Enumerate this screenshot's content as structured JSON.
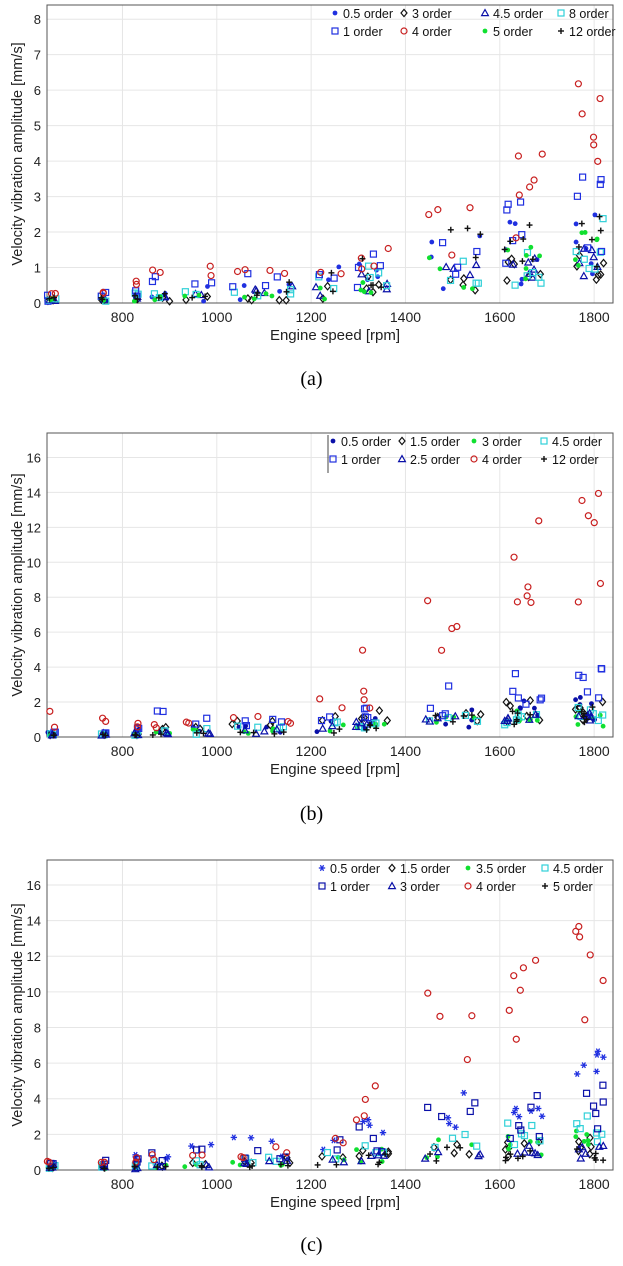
{
  "colors": {
    "navy": "#0a10a8",
    "blue": "#2030e0",
    "black": "#111111",
    "green": "#10e030",
    "cyan": "#30d0d8",
    "red": "#c82020"
  },
  "chart_data": [
    {
      "type": "scatter",
      "caption": "(a)",
      "xlabel": "Engine speed [rpm]",
      "ylabel": "Velocity vibration amplitude [mm/s]",
      "xlim": [
        640,
        1840
      ],
      "ylim": [
        0,
        8.4
      ],
      "xticks": [
        800,
        1000,
        1200,
        1400,
        1600,
        1800
      ],
      "yticks": [
        0,
        1,
        2,
        3,
        4,
        5,
        6,
        7,
        8
      ],
      "grid": true,
      "legend_position": "top-right",
      "legend_columns": 4,
      "series": [
        {
          "name": "0.5 order",
          "marker": "dot",
          "color": "blue",
          "level": [
            0.12,
            0.1,
            0.14,
            0.2,
            0.25,
            0.35,
            0.55,
            0.7,
            0.9,
            1.1,
            1.3,
            1.6
          ],
          "spread": [
            0.1,
            0.1,
            0.15,
            0.2,
            0.25,
            0.3,
            0.35,
            0.4,
            0.6,
            0.8,
            1.0,
            1.1
          ]
        },
        {
          "name": "3 order",
          "marker": "diamond",
          "color": "black",
          "level": [
            0.08,
            0.08,
            0.1,
            0.12,
            0.14,
            0.18,
            0.22,
            0.3,
            0.45,
            0.6,
            0.8,
            0.9
          ],
          "spread": [
            0.05,
            0.05,
            0.1,
            0.1,
            0.1,
            0.1,
            0.15,
            0.2,
            0.3,
            0.4,
            0.5,
            0.5
          ]
        },
        {
          "name": "4.5 order",
          "marker": "triangle",
          "color": "navy",
          "level": [
            0.1,
            0.12,
            0.15,
            0.18,
            0.2,
            0.25,
            0.3,
            0.4,
            0.6,
            0.8,
            1.0,
            1.2
          ],
          "spread": [
            0.05,
            0.05,
            0.1,
            0.1,
            0.1,
            0.15,
            0.2,
            0.25,
            0.3,
            0.4,
            0.5,
            0.5
          ]
        },
        {
          "name": "8 order",
          "marker": "square",
          "color": "cyan",
          "level": [
            0.1,
            0.12,
            0.2,
            0.3,
            0.35,
            0.4,
            0.45,
            0.5,
            0.7,
            0.9,
            1.2,
            1.6
          ],
          "spread": [
            0.05,
            0.1,
            0.1,
            0.15,
            0.2,
            0.2,
            0.25,
            0.3,
            0.4,
            0.6,
            0.7,
            0.8
          ]
        },
        {
          "name": "1 order",
          "marker": "square",
          "color": "blue",
          "level": [
            0.15,
            0.2,
            0.3,
            0.45,
            0.5,
            0.55,
            0.6,
            0.8,
            1.2,
            1.8,
            2.2,
            2.4
          ],
          "spread": [
            0.1,
            0.1,
            0.2,
            0.3,
            0.3,
            0.3,
            0.3,
            0.4,
            0.8,
            1.1,
            1.1,
            1.2
          ]
        },
        {
          "name": "4 order",
          "marker": "circle",
          "color": "red",
          "level": [
            0.35,
            0.3,
            0.55,
            0.75,
            0.85,
            0.85,
            0.75,
            0.9,
            1.3,
            1.9,
            2.8,
            5.0
          ],
          "spread": [
            0.1,
            0.1,
            0.2,
            0.2,
            0.2,
            0.2,
            0.2,
            0.2,
            0.6,
            1.0,
            1.4,
            1.8
          ]
        },
        {
          "name": "5 order",
          "marker": "dot",
          "color": "green",
          "level": [
            0.08,
            0.08,
            0.1,
            0.12,
            0.14,
            0.16,
            0.2,
            0.25,
            0.5,
            0.8,
            1.1,
            1.3
          ],
          "spread": [
            0.05,
            0.05,
            0.08,
            0.1,
            0.1,
            0.1,
            0.15,
            0.2,
            0.3,
            0.5,
            0.6,
            0.7
          ]
        },
        {
          "name": "12 order",
          "marker": "plus",
          "color": "black",
          "level": [
            0.1,
            0.12,
            0.15,
            0.2,
            0.25,
            0.3,
            0.4,
            0.6,
            0.9,
            1.4,
            1.8,
            1.9
          ],
          "spread": [
            0.05,
            0.08,
            0.1,
            0.1,
            0.15,
            0.2,
            0.25,
            0.3,
            0.5,
            0.9,
            1.0,
            1.0
          ]
        }
      ]
    },
    {
      "type": "scatter",
      "caption": "(b)",
      "xlabel": "Engine speed [rpm]",
      "ylabel": "Velocity vibration amplitude [mm/s]",
      "xlim": [
        640,
        1840
      ],
      "ylim": [
        0,
        17.4
      ],
      "xticks": [
        800,
        1000,
        1200,
        1400,
        1600,
        1800
      ],
      "yticks": [
        0,
        2,
        4,
        6,
        8,
        10,
        12,
        14,
        16
      ],
      "grid": true,
      "legend_position": "top-right",
      "legend_columns": 4,
      "series": [
        {
          "name": "0.5 order",
          "marker": "dot",
          "color": "navy",
          "level": [
            0.2,
            0.2,
            0.3,
            0.35,
            0.4,
            0.45,
            0.5,
            0.6,
            0.8,
            1.1,
            1.4,
            1.6
          ],
          "spread": [
            0.1,
            0.1,
            0.2,
            0.2,
            0.2,
            0.2,
            0.3,
            0.3,
            0.4,
            0.6,
            0.8,
            0.8
          ]
        },
        {
          "name": "1.5 order",
          "marker": "diamond",
          "color": "black",
          "level": [
            0.15,
            0.2,
            0.3,
            0.5,
            0.7,
            0.8,
            0.9,
            1.0,
            1.2,
            1.4,
            1.5,
            1.6
          ],
          "spread": [
            0.1,
            0.1,
            0.2,
            0.2,
            0.3,
            0.3,
            0.3,
            0.3,
            0.4,
            0.6,
            0.7,
            0.7
          ]
        },
        {
          "name": "3 order",
          "marker": "dot",
          "color": "green",
          "level": [
            0.1,
            0.1,
            0.2,
            0.25,
            0.3,
            0.35,
            0.4,
            0.5,
            0.7,
            0.9,
            1.0,
            1.1
          ],
          "spread": [
            0.05,
            0.05,
            0.1,
            0.1,
            0.15,
            0.2,
            0.2,
            0.2,
            0.3,
            0.4,
            0.5,
            0.5
          ]
        },
        {
          "name": "4.5 order",
          "marker": "square",
          "color": "cyan",
          "level": [
            0.15,
            0.15,
            0.2,
            0.3,
            0.35,
            0.45,
            0.5,
            0.6,
            0.8,
            0.9,
            1.0,
            1.2
          ],
          "spread": [
            0.05,
            0.05,
            0.1,
            0.15,
            0.2,
            0.2,
            0.2,
            0.3,
            0.3,
            0.4,
            0.5,
            0.5
          ]
        },
        {
          "name": "1 order",
          "marker": "square",
          "color": "blue",
          "level": [
            0.3,
            0.3,
            0.5,
            1.0,
            0.9,
            0.9,
            0.9,
            1.0,
            1.4,
            2.2,
            2.6,
            2.8
          ],
          "spread": [
            0.1,
            0.1,
            0.3,
            0.5,
            0.3,
            0.3,
            0.3,
            0.3,
            0.5,
            1.0,
            1.2,
            1.2
          ]
        },
        {
          "name": "2.5 order",
          "marker": "triangle",
          "color": "navy",
          "level": [
            0.1,
            0.12,
            0.15,
            0.2,
            0.25,
            0.3,
            0.35,
            0.45,
            0.6,
            0.8,
            0.9,
            1.0
          ],
          "spread": [
            0.05,
            0.05,
            0.1,
            0.1,
            0.1,
            0.15,
            0.15,
            0.2,
            0.3,
            0.4,
            0.4,
            0.5
          ]
        },
        {
          "name": "4 order",
          "marker": "circle",
          "color": "red",
          "level": [
            1.0,
            0.9,
            0.8,
            0.6,
            0.7,
            0.9,
            1.2,
            1.8,
            3.5,
            7.0,
            9.5,
            10.0
          ],
          "spread": [
            0.6,
            0.3,
            0.3,
            0.2,
            0.3,
            0.4,
            0.5,
            0.5,
            2.0,
            3.0,
            3.0,
            4.0
          ]
        },
        {
          "name": "12 order",
          "marker": "plus",
          "color": "black",
          "level": [
            0.1,
            0.1,
            0.1,
            0.12,
            0.15,
            0.2,
            0.3,
            0.4,
            0.7,
            0.9,
            1.0,
            1.2
          ],
          "spread": [
            0.05,
            0.05,
            0.05,
            0.1,
            0.1,
            0.1,
            0.15,
            0.2,
            0.3,
            0.4,
            0.5,
            0.6
          ]
        }
      ]
    },
    {
      "type": "scatter",
      "caption": "(c)",
      "xlabel": "Engine speed [rpm]",
      "ylabel": "Velocity vibration amplitude [mm/s]",
      "xlim": [
        640,
        1840
      ],
      "ylim": [
        0,
        17.4
      ],
      "xticks": [
        800,
        1000,
        1200,
        1400,
        1600,
        1800
      ],
      "yticks": [
        0,
        2,
        4,
        6,
        8,
        10,
        12,
        14,
        16
      ],
      "grid": true,
      "legend_position": "top-right",
      "legend_columns": 4,
      "series": [
        {
          "name": "0.5 order",
          "marker": "star",
          "color": "blue",
          "level": [
            0.3,
            0.4,
            0.6,
            0.8,
            1.1,
            1.4,
            1.3,
            1.6,
            2.4,
            3.5,
            4.0,
            4.8
          ],
          "spread": [
            0.2,
            0.2,
            0.3,
            0.4,
            0.6,
            0.6,
            0.6,
            0.6,
            1.0,
            1.6,
            1.8,
            2.0
          ]
        },
        {
          "name": "1.5 order",
          "marker": "diamond",
          "color": "black",
          "level": [
            0.15,
            0.2,
            0.3,
            0.35,
            0.4,
            0.45,
            0.5,
            0.6,
            0.9,
            1.2,
            1.3,
            1.5
          ],
          "spread": [
            0.1,
            0.1,
            0.1,
            0.2,
            0.2,
            0.2,
            0.2,
            0.3,
            0.4,
            0.5,
            0.6,
            0.7
          ]
        },
        {
          "name": "3.5 order",
          "marker": "dot",
          "color": "green",
          "level": [
            0.1,
            0.1,
            0.15,
            0.2,
            0.25,
            0.3,
            0.35,
            0.5,
            0.8,
            1.2,
            1.5,
            1.7
          ],
          "spread": [
            0.05,
            0.05,
            0.1,
            0.1,
            0.15,
            0.2,
            0.2,
            0.3,
            0.4,
            0.6,
            0.7,
            0.8
          ]
        },
        {
          "name": "4.5 order",
          "marker": "square",
          "color": "cyan",
          "level": [
            0.15,
            0.2,
            0.25,
            0.3,
            0.4,
            0.5,
            0.6,
            0.7,
            1.1,
            1.6,
            2.0,
            2.2
          ],
          "spread": [
            0.1,
            0.1,
            0.1,
            0.15,
            0.2,
            0.2,
            0.3,
            0.3,
            0.5,
            0.7,
            0.8,
            0.9
          ]
        },
        {
          "name": "1 order",
          "marker": "square",
          "color": "navy",
          "level": [
            0.3,
            0.4,
            0.5,
            0.7,
            0.8,
            0.9,
            1.0,
            1.2,
            1.8,
            2.6,
            3.0,
            3.4
          ],
          "spread": [
            0.1,
            0.2,
            0.2,
            0.3,
            0.4,
            0.4,
            0.4,
            0.5,
            0.8,
            1.2,
            1.4,
            1.6
          ]
        },
        {
          "name": "3 order",
          "marker": "triangle",
          "color": "navy",
          "level": [
            0.1,
            0.12,
            0.15,
            0.2,
            0.25,
            0.3,
            0.35,
            0.45,
            0.7,
            0.9,
            1.0,
            1.1
          ],
          "spread": [
            0.05,
            0.05,
            0.1,
            0.1,
            0.1,
            0.15,
            0.2,
            0.2,
            0.3,
            0.4,
            0.4,
            0.5
          ]
        },
        {
          "name": "4 order",
          "marker": "circle",
          "color": "red",
          "level": [
            0.4,
            0.5,
            0.6,
            0.7,
            0.8,
            0.9,
            1.0,
            1.4,
            3.2,
            8.0,
            10.5,
            11.0
          ],
          "spread": [
            0.1,
            0.1,
            0.2,
            0.2,
            0.2,
            0.3,
            0.4,
            0.6,
            2.0,
            3.2,
            3.2,
            3.4
          ]
        },
        {
          "name": "5 order",
          "marker": "plus",
          "color": "black",
          "level": [
            0.1,
            0.1,
            0.12,
            0.15,
            0.2,
            0.25,
            0.3,
            0.4,
            0.6,
            0.9,
            0.9,
            0.8
          ],
          "spread": [
            0.05,
            0.05,
            0.1,
            0.1,
            0.1,
            0.1,
            0.15,
            0.2,
            0.3,
            0.4,
            0.4,
            0.4
          ]
        }
      ]
    }
  ]
}
